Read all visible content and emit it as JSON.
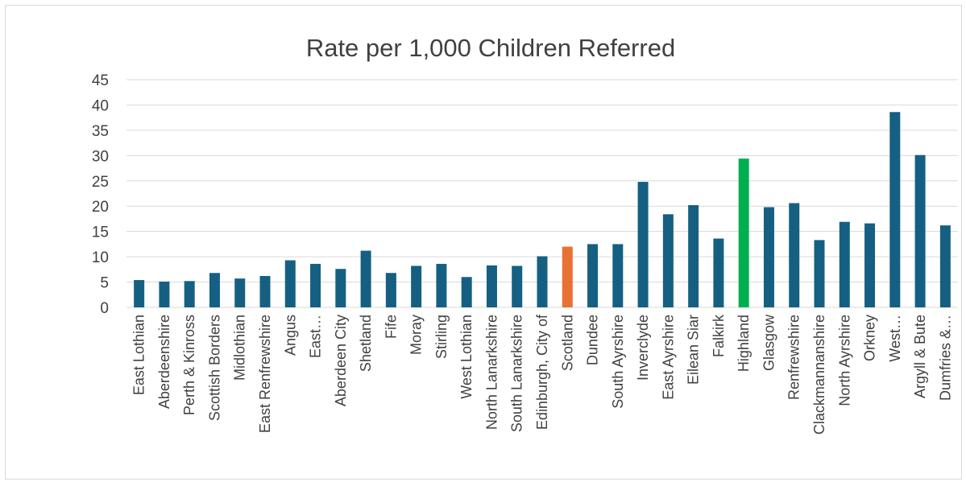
{
  "chart_data": {
    "type": "bar",
    "title": "Rate per 1,000 Children Referred",
    "xlabel": "",
    "ylabel": "",
    "ylim": [
      0,
      45
    ],
    "yticks": [
      0,
      5,
      10,
      15,
      20,
      25,
      30,
      35,
      40,
      45
    ],
    "grid": true,
    "legend": "none",
    "categories": [
      "East Lothian",
      "Aberdeenshire",
      "Perth & Kinross",
      "Scottish Borders",
      "Midlothian",
      "East Renfrewshire",
      "Angus",
      "East…",
      "Aberdeen City",
      "Shetland",
      "Fife",
      "Moray",
      "Stirling",
      "West Lothian",
      "North Lanarkshire",
      "South Lanarkshire",
      "Edinburgh, City of",
      "Scotland",
      "Dundee",
      "South Ayrshire",
      "Inverclyde",
      "East Ayrshire",
      "Eilean Siar",
      "Falkirk",
      "Highland",
      "Glasgow",
      "Renfrewshire",
      "Clackmannanshire",
      "North Ayrshire",
      "Orkney",
      "West…",
      "Argyll & Bute",
      "Dumfries &…"
    ],
    "values": [
      5.4,
      5.1,
      5.2,
      6.8,
      5.7,
      6.2,
      9.3,
      8.6,
      7.6,
      11.2,
      6.8,
      8.2,
      8.6,
      6.0,
      8.3,
      8.2,
      10.1,
      12.0,
      12.5,
      12.5,
      24.8,
      18.4,
      20.2,
      13.6,
      29.4,
      19.8,
      20.6,
      13.3,
      16.9,
      16.6,
      38.6,
      30.1,
      16.2
    ],
    "colors": {
      "default": "#156082",
      "Scotland": "#e97132",
      "Highland": "#00b050",
      "grid": "#d9d9d9",
      "text": "#404040"
    }
  }
}
